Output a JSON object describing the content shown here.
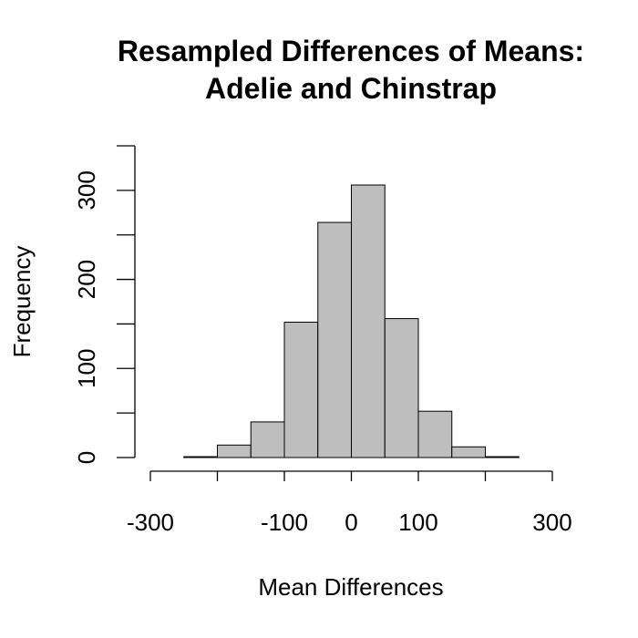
{
  "chart_data": {
    "type": "bar",
    "title": "Resampled Differences of Means:",
    "title_line2": "Adelie and Chinstrap",
    "xlabel": "Mean Differences",
    "ylabel": "Frequency",
    "bar_color": "#bebebe",
    "border_color": "#000000",
    "grid": false,
    "xlim": [
      -300,
      300
    ],
    "ylim": [
      0,
      350
    ],
    "x_ticks": [
      -300,
      -200,
      -100,
      0,
      100,
      200,
      300
    ],
    "x_tick_labels": [
      "-300",
      "-100",
      "0",
      "100",
      "300"
    ],
    "x_tick_label_values": [
      -300,
      -100,
      0,
      100,
      300
    ],
    "y_ticks": [
      0,
      50,
      100,
      150,
      200,
      250,
      300,
      350
    ],
    "y_tick_labels": [
      "0",
      "100",
      "200",
      "300"
    ],
    "y_tick_label_values": [
      0,
      100,
      200,
      300
    ],
    "bins": [
      {
        "from": -250,
        "to": -200,
        "count": 1
      },
      {
        "from": -200,
        "to": -150,
        "count": 14
      },
      {
        "from": -150,
        "to": -100,
        "count": 40
      },
      {
        "from": -100,
        "to": -50,
        "count": 152
      },
      {
        "from": -50,
        "to": 0,
        "count": 264
      },
      {
        "from": 0,
        "to": 50,
        "count": 306
      },
      {
        "from": 50,
        "to": 100,
        "count": 156
      },
      {
        "from": 100,
        "to": 150,
        "count": 52
      },
      {
        "from": 150,
        "to": 200,
        "count": 12
      },
      {
        "from": 200,
        "to": 250,
        "count": 1
      }
    ]
  }
}
